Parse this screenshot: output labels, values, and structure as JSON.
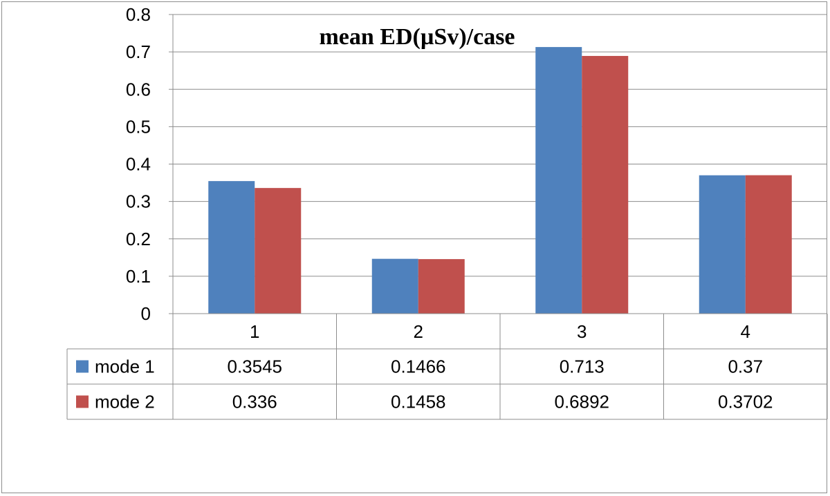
{
  "chart_data": {
    "type": "bar",
    "title": "mean ED(µSv)/case",
    "xlabel": "",
    "ylabel": "",
    "categories": [
      "1",
      "2",
      "3",
      "4"
    ],
    "ylim": [
      0,
      0.8
    ],
    "yticks": [
      "0",
      "0.1",
      "0.2",
      "0.3",
      "0.4",
      "0.5",
      "0.6",
      "0.7",
      "0.8"
    ],
    "grid": true,
    "legend": "data-table",
    "series": [
      {
        "name": "mode 1",
        "color": "#4f81bd",
        "values": [
          0.3545,
          0.1466,
          0.713,
          0.37
        ],
        "labels": [
          "0.3545",
          "0.1466",
          "0.713",
          "0.37"
        ]
      },
      {
        "name": "mode 2",
        "color": "#c0504d",
        "values": [
          0.336,
          0.1458,
          0.6892,
          0.3702
        ],
        "labels": [
          "0.336",
          "0.1458",
          "0.6892",
          "0.3702"
        ]
      }
    ]
  }
}
